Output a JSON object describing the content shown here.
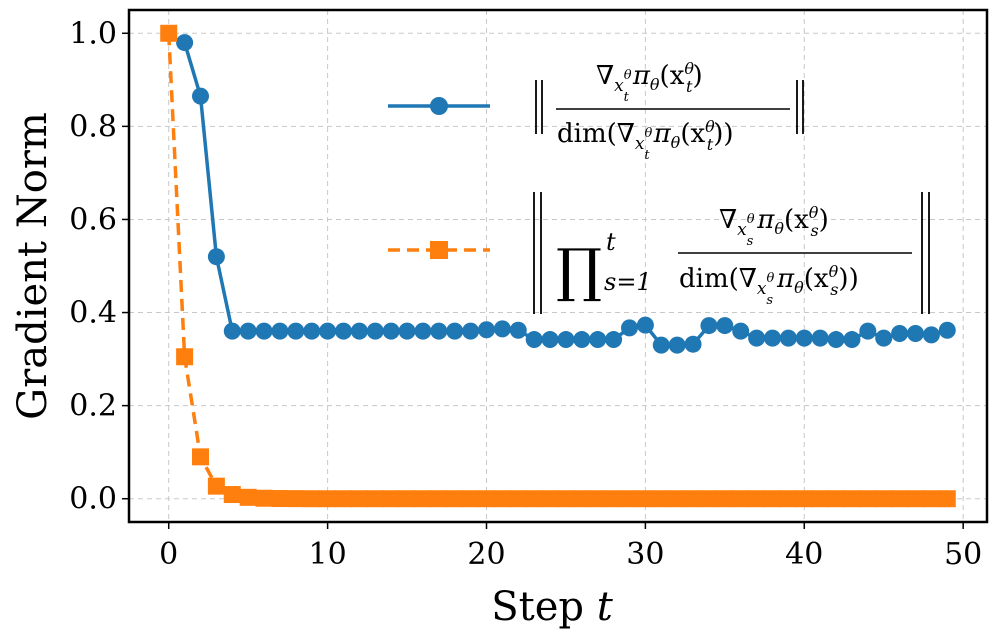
{
  "chart_data": {
    "type": "line",
    "title": "",
    "xlabel": "Step",
    "xlabel_var": "t",
    "ylabel": "Gradient Norm",
    "xlim": [
      -2.5,
      51.5
    ],
    "ylim": [
      -0.05,
      1.05
    ],
    "xticks": [
      0,
      10,
      20,
      30,
      40,
      50
    ],
    "xtick_labels": [
      "0",
      "10",
      "20",
      "30",
      "40",
      "50"
    ],
    "yticks": [
      0.0,
      0.2,
      0.4,
      0.6,
      0.8,
      1.0
    ],
    "ytick_labels": [
      "0.0",
      "0.2",
      "0.4",
      "0.6",
      "0.8",
      "1.0"
    ],
    "grid": true,
    "legend_position": "upper-right",
    "series": [
      {
        "name": "‖∇π(x_t) / dim(∇π(x_t))‖",
        "legend_parts": {
          "num": "∇",
          "num_sub": "x",
          "num_subsub": "t",
          "num_sup": "θ",
          "num_rest": "π",
          "num_rest_sub": "θ",
          "num_arg": "(x",
          "num_arg_sub": "t",
          "num_arg_sup": "θ",
          "num_close": ")",
          "den_prefix": "dim(∇",
          "den_close": "))"
        },
        "color": "#1f77b4",
        "linestyle": "solid",
        "marker": "circle",
        "x": [
          1,
          2,
          3,
          4,
          5,
          6,
          7,
          8,
          9,
          10,
          11,
          12,
          13,
          14,
          15,
          16,
          17,
          18,
          19,
          20,
          21,
          22,
          23,
          24,
          25,
          26,
          27,
          28,
          29,
          30,
          31,
          32,
          33,
          34,
          35,
          36,
          37,
          38,
          39,
          40,
          41,
          42,
          43,
          44,
          45,
          46,
          47,
          48,
          49
        ],
        "values": [
          0.98,
          0.865,
          0.52,
          0.36,
          0.36,
          0.36,
          0.36,
          0.36,
          0.36,
          0.36,
          0.36,
          0.36,
          0.36,
          0.36,
          0.36,
          0.36,
          0.36,
          0.36,
          0.36,
          0.363,
          0.365,
          0.362,
          0.342,
          0.342,
          0.342,
          0.342,
          0.342,
          0.342,
          0.367,
          0.373,
          0.33,
          0.33,
          0.332,
          0.372,
          0.372,
          0.36,
          0.345,
          0.345,
          0.345,
          0.345,
          0.345,
          0.342,
          0.342,
          0.36,
          0.345,
          0.355,
          0.355,
          0.352,
          0.362
        ]
      },
      {
        "name": "‖∏_{s=1}^t ∇π(x_s) / dim(∇π(x_s))‖",
        "legend_parts": {
          "prod": "∏",
          "prod_sup": "t",
          "prod_sub": "s=1",
          "num_subsub": "s",
          "num_arg_sub": "s"
        },
        "color": "#ff7f0e",
        "linestyle": "dashed",
        "marker": "square",
        "x": [
          0,
          1,
          2,
          3,
          4,
          5,
          6,
          7,
          8,
          9,
          10,
          11,
          12,
          13,
          14,
          15,
          16,
          17,
          18,
          19,
          20,
          21,
          22,
          23,
          24,
          25,
          26,
          27,
          28,
          29,
          30,
          31,
          32,
          33,
          34,
          35,
          36,
          37,
          38,
          39,
          40,
          41,
          42,
          43,
          44,
          45,
          46,
          47,
          48,
          49
        ],
        "values": [
          1.0,
          0.305,
          0.09,
          0.027,
          0.009,
          0.003,
          0.001,
          0.0004,
          0.0002,
          0,
          0,
          0,
          0,
          0,
          0,
          0,
          0,
          0,
          0,
          0,
          0,
          0,
          0,
          0,
          0,
          0,
          0,
          0,
          0,
          0,
          0,
          0,
          0,
          0,
          0,
          0,
          0,
          0,
          0,
          0,
          0,
          0,
          0,
          0,
          0,
          0,
          0,
          0,
          0,
          0
        ]
      }
    ]
  }
}
